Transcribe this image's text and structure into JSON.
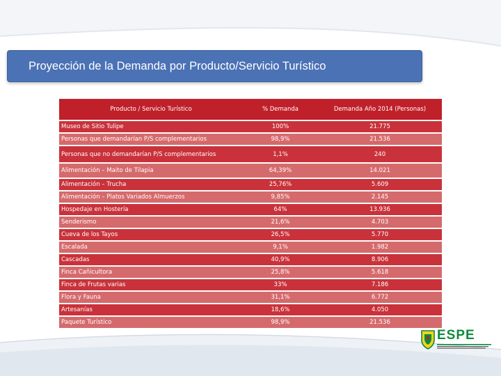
{
  "title": "Proyección de la Demanda por Producto/Servicio Turístico",
  "table": {
    "headers": [
      "Producto / Servicio Turístico",
      "% Demanda",
      "Demanda Año 2014 (Personas)"
    ],
    "rows": [
      {
        "producto": "Museo de Sitio Tulipe",
        "porcentaje": "100%",
        "demanda": "21.775"
      },
      {
        "producto": "Personas que demandarían P/S complementarios",
        "porcentaje": "98,9%",
        "demanda": "21.536"
      },
      {
        "producto": "Personas que no demandarían P/S complementarios",
        "porcentaje": "1,1%",
        "demanda": "240"
      },
      {
        "producto": "Alimentación – Maito de Tilapia",
        "porcentaje": "64,39%",
        "demanda": "14.021"
      },
      {
        "producto": "Alimentación – Trucha",
        "porcentaje": "25,76%",
        "demanda": "5.609"
      },
      {
        "producto": "Alimentación – Platos Variados Almuerzos",
        "porcentaje": "9,85%",
        "demanda": "2.145"
      },
      {
        "producto": "Hospedaje en Hostería",
        "porcentaje": "64%",
        "demanda": "13.936"
      },
      {
        "producto": "Senderismo",
        "porcentaje": "21,6%",
        "demanda": "4.703"
      },
      {
        "producto": "Cueva de los Tayos",
        "porcentaje": "26,5%",
        "demanda": "5.770"
      },
      {
        "producto": "Escalada",
        "porcentaje": "9,1%",
        "demanda": "1.982"
      },
      {
        "producto": "Cascadas",
        "porcentaje": "40,9%",
        "demanda": "8.906"
      },
      {
        "producto": "Finca Cañicultora",
        "porcentaje": "25,8%",
        "demanda": "5.618"
      },
      {
        "producto": "Finca de Frutas varias",
        "porcentaje": "33%",
        "demanda": "7.186"
      },
      {
        "producto": "Flora y Fauna",
        "porcentaje": "31,1%",
        "demanda": "6.772"
      },
      {
        "producto": "Artesanías",
        "porcentaje": "18,6%",
        "demanda": "4.050"
      },
      {
        "producto": "Paquete Turístico",
        "porcentaje": "98,9%",
        "demanda": "21.536"
      }
    ]
  },
  "logo": {
    "text": "ESPE"
  },
  "colors": {
    "title_bar": "#4a72b5",
    "header_row": "#c0202a",
    "row_dark": "#c9323a",
    "row_light": "#d56a6c",
    "logo_green": "#0c8a3c"
  }
}
